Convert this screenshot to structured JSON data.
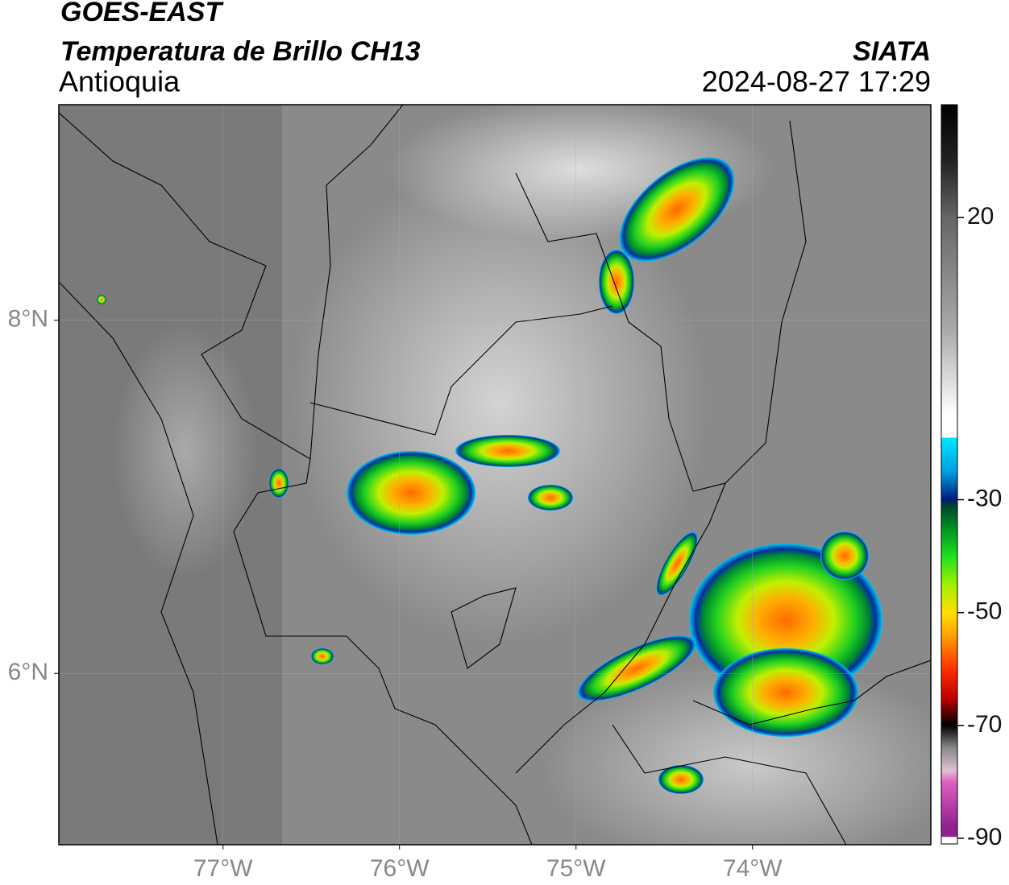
{
  "header": {
    "satellite": "GOES-EAST",
    "product": "Temperatura de Brillo CH13",
    "region": "Antioquia",
    "source": "SIATA",
    "datetime": "2024-08-27 17:29"
  },
  "map": {
    "xlim": [
      -77.93,
      -72.99
    ],
    "ylim": [
      5.03,
      9.22
    ],
    "xticks": [
      {
        "value": -77,
        "label": "77°W"
      },
      {
        "value": -76,
        "label": "76°W"
      },
      {
        "value": -75,
        "label": "75°W"
      },
      {
        "value": -74,
        "label": "74°W"
      }
    ],
    "yticks": [
      {
        "value": 8,
        "label": "8°N"
      },
      {
        "value": 6,
        "label": "6°N"
      }
    ]
  },
  "colorbar": {
    "lim": [
      -91,
      40
    ],
    "ticks": [
      20,
      -30,
      -50,
      -70,
      -90
    ]
  }
}
